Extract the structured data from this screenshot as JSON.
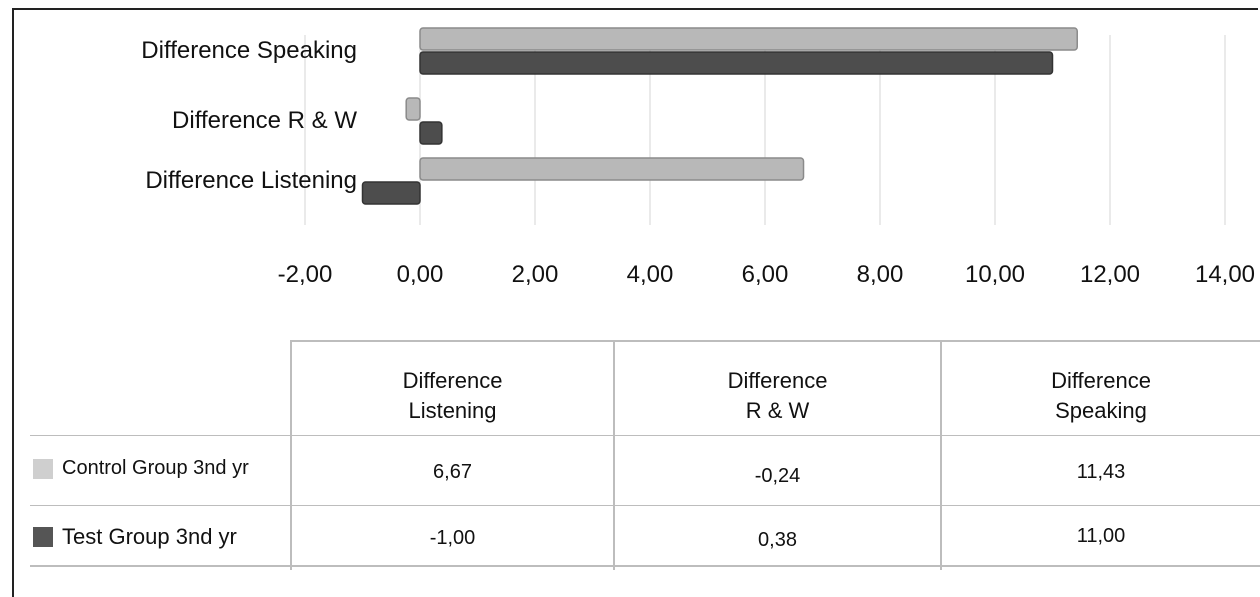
{
  "chart_data": {
    "type": "bar",
    "orientation": "horizontal",
    "categories": [
      "Difference Speaking",
      "Difference R & W",
      "Difference Listening"
    ],
    "series": [
      {
        "name": "Control Group 3nd yr",
        "color": "#b8b8b8",
        "values": [
          11.43,
          -0.24,
          6.67
        ]
      },
      {
        "name": "Test Group 3nd yr",
        "color": "#4d4d4d",
        "values": [
          11.0,
          0.38,
          -1.0
        ]
      }
    ],
    "x_ticks": [
      "-2,00",
      "0,00",
      "2,00",
      "4,00",
      "6,00",
      "8,00",
      "10,00",
      "12,00",
      "14,00"
    ],
    "xlim": [
      -2,
      14
    ],
    "grid": true,
    "legend": "table-left"
  },
  "table": {
    "columns": [
      "Difference\nListening",
      "Difference\nR & W",
      "Difference\nSpeaking"
    ],
    "rows": [
      {
        "label": "Control Group 3nd yr",
        "color": "#cfcfcf",
        "values": [
          "6,67",
          "-0,24",
          "11,43"
        ]
      },
      {
        "label": "Test Group 3nd yr",
        "color": "#555555",
        "values": [
          "-1,00",
          "0,38",
          "11,00"
        ]
      }
    ]
  }
}
